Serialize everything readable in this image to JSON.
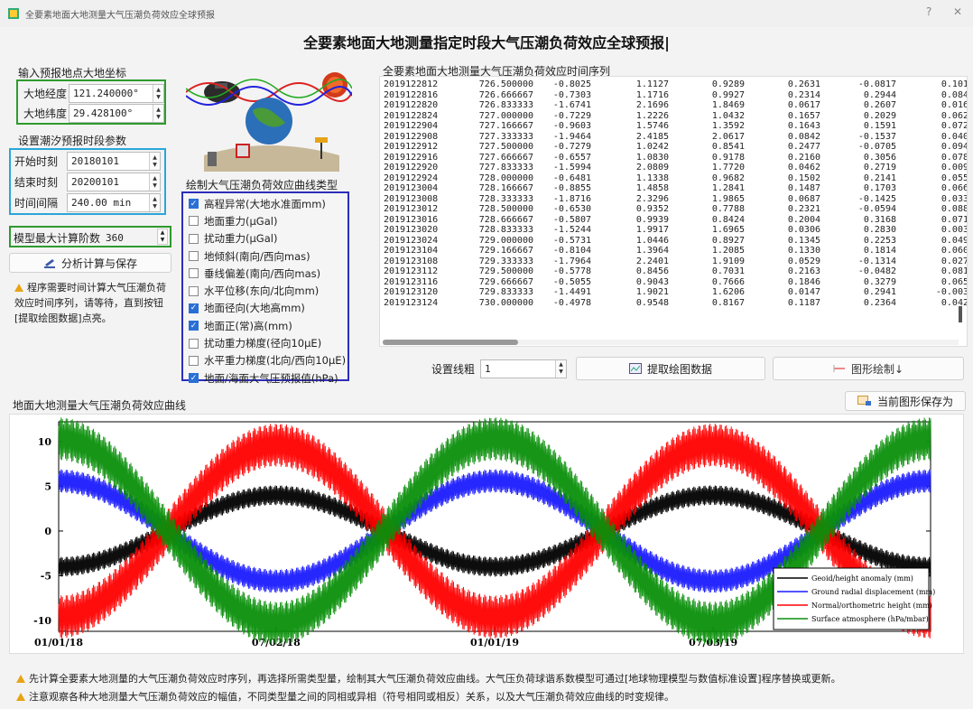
{
  "window": {
    "title": "全要素地面大地测量大气压潮负荷效应全球预报",
    "help_label": "?",
    "close_label": "✕"
  },
  "main_title": "全要素地面大地测量指定时段大气压潮负荷效应全球预报|",
  "location": {
    "label": "输入预报地点大地坐标",
    "longitude_label": "大地经度",
    "longitude_value": "121.240000°",
    "latitude_label": "大地纬度",
    "latitude_value": "29.428100°"
  },
  "tide_params": {
    "label": "设置潮汐预报时段参数",
    "start_label": "开始时刻",
    "start_value": "20180101",
    "end_label": "结束时刻",
    "end_value": "20200101",
    "interval_label": "时间间隔",
    "interval_value": "240.00 min"
  },
  "model": {
    "label": "模型最大计算阶数",
    "value": "360"
  },
  "analyze_button": "分析计算与保存",
  "hint_text": "程序需要时间计算大气压潮负荷效应时间序列，请等待，直到按钮[提取绘图数据]点亮。",
  "curve_types": {
    "label": "绘制大气压潮负荷效应曲线类型",
    "items": [
      {
        "label": "高程异常(大地水准面mm)",
        "checked": true
      },
      {
        "label": "地面重力(μGal)",
        "checked": false
      },
      {
        "label": "扰动重力(μGal)",
        "checked": false
      },
      {
        "label": "地倾斜(南向/西向mas)",
        "checked": false
      },
      {
        "label": "垂线偏差(南向/西向mas)",
        "checked": false
      },
      {
        "label": "水平位移(东向/北向mm)",
        "checked": false
      },
      {
        "label": "地面径向(大地高mm)",
        "checked": true
      },
      {
        "label": "地面正(常)高(mm)",
        "checked": true
      },
      {
        "label": "扰动重力梯度(径向10μE)",
        "checked": false
      },
      {
        "label": "水平重力梯度(北向/西向10μE)",
        "checked": false
      },
      {
        "label": "地面/海面大气压预报值(hPa)",
        "checked": true
      }
    ]
  },
  "series_table": {
    "label": "全要素地面大地测量大气压潮负荷效应时间序列",
    "rows": [
      [
        "2019122812",
        "726.500000",
        "-0.8025",
        "1.1127",
        "0.9289",
        "0.2631",
        "-0.0817",
        "0.101"
      ],
      [
        "2019122816",
        "726.666667",
        "-0.7303",
        "1.1716",
        "0.9927",
        "0.2314",
        "0.2944",
        "0.084"
      ],
      [
        "2019122820",
        "726.833333",
        "-1.6741",
        "2.1696",
        "1.8469",
        "0.0617",
        "0.2607",
        "0.016"
      ],
      [
        "2019122824",
        "727.000000",
        "-0.7229",
        "1.2226",
        "1.0432",
        "0.1657",
        "0.2029",
        "0.062"
      ],
      [
        "2019122904",
        "727.166667",
        "-0.9603",
        "1.5746",
        "1.3592",
        "0.1643",
        "0.1591",
        "0.072"
      ],
      [
        "2019122908",
        "727.333333",
        "-1.9464",
        "2.4185",
        "2.0617",
        "0.0842",
        "-0.1537",
        "0.040"
      ],
      [
        "2019122912",
        "727.500000",
        "-0.7279",
        "1.0242",
        "0.8541",
        "0.2477",
        "-0.0705",
        "0.094"
      ],
      [
        "2019122916",
        "727.666667",
        "-0.6557",
        "1.0830",
        "0.9178",
        "0.2160",
        "0.3056",
        "0.078"
      ],
      [
        "2019122920",
        "727.833333",
        "-1.5994",
        "2.0809",
        "1.7720",
        "0.0462",
        "0.2719",
        "0.009"
      ],
      [
        "2019122924",
        "728.000000",
        "-0.6481",
        "1.1338",
        "0.9682",
        "0.1502",
        "0.2141",
        "0.055"
      ],
      [
        "2019123004",
        "728.166667",
        "-0.8855",
        "1.4858",
        "1.2841",
        "0.1487",
        "0.1703",
        "0.066"
      ],
      [
        "2019123008",
        "728.333333",
        "-1.8716",
        "2.3296",
        "1.9865",
        "0.0687",
        "-0.1425",
        "0.033"
      ],
      [
        "2019123012",
        "728.500000",
        "-0.6530",
        "0.9352",
        "0.7788",
        "0.2321",
        "-0.0594",
        "0.088"
      ],
      [
        "2019123016",
        "728.666667",
        "-0.5807",
        "0.9939",
        "0.8424",
        "0.2004",
        "0.3168",
        "0.071"
      ],
      [
        "2019123020",
        "728.833333",
        "-1.5244",
        "1.9917",
        "1.6965",
        "0.0306",
        "0.2830",
        "0.003"
      ],
      [
        "2019123024",
        "729.000000",
        "-0.5731",
        "1.0446",
        "0.8927",
        "0.1345",
        "0.2253",
        "0.049"
      ],
      [
        "2019123104",
        "729.166667",
        "-0.8104",
        "1.3964",
        "1.2085",
        "0.1330",
        "0.1814",
        "0.060"
      ],
      [
        "2019123108",
        "729.333333",
        "-1.7964",
        "2.2401",
        "1.9109",
        "0.0529",
        "-0.1314",
        "0.027"
      ],
      [
        "2019123112",
        "729.500000",
        "-0.5778",
        "0.8456",
        "0.7031",
        "0.2163",
        "-0.0482",
        "0.081"
      ],
      [
        "2019123116",
        "729.666667",
        "-0.5055",
        "0.9043",
        "0.7666",
        "0.1846",
        "0.3279",
        "0.065"
      ],
      [
        "2019123120",
        "729.833333",
        "-1.4491",
        "1.9021",
        "1.6206",
        "0.0147",
        "0.2941",
        "-0.003"
      ],
      [
        "2019123124",
        "730.000000",
        "-0.4978",
        "0.9548",
        "0.8167",
        "0.1187",
        "0.2364",
        "0.042"
      ]
    ]
  },
  "toolbar": {
    "line_width_label": "设置线粗",
    "line_width_value": "1",
    "extract_button": "提取绘图数据",
    "plot_button": "图形绘制↓"
  },
  "chart_section": {
    "label": "地面大地测量大气压潮负荷效应曲线",
    "save_button": "当前图形保存为"
  },
  "chart_data": {
    "type": "line",
    "x_ticks": [
      "01/01/18",
      "07/02/18",
      "01/01/19",
      "07/03/19"
    ],
    "x_tick_days": [
      0,
      182,
      365,
      548
    ],
    "xlim": [
      0,
      730
    ],
    "y_ticks": [
      "10",
      "5",
      "0",
      "-5",
      "-10"
    ],
    "ylim": [
      -11.2,
      12.2
    ],
    "legend_position": "bottom-right",
    "series": [
      {
        "name": "Geoid/height anomaly (mm)",
        "color": "#000000",
        "amplitude": 4.0,
        "period_days": 365,
        "phase_days": 0,
        "sign": -1,
        "band": 1.1
      },
      {
        "name": "Ground radial displacement (mm)",
        "color": "#1a1aff",
        "amplitude": 5.6,
        "period_days": 365,
        "phase_days": 0,
        "sign": 1,
        "band": 1.3
      },
      {
        "name": "Normal/orthometric height (mm)",
        "color": "#ff0000",
        "amplitude": 9.6,
        "period_days": 365,
        "phase_days": 0,
        "sign": -1,
        "band": 2.4
      },
      {
        "name": "Surface atmosphere (hPa/mbar)",
        "color": "#0a8f0a",
        "amplitude": 10.3,
        "period_days": 365,
        "phase_days": 0,
        "sign": 1,
        "band": 2.4
      }
    ]
  },
  "footer": {
    "line1": "先计算全要素大地测量的大气压潮负荷效应时序列，再选择所需类型量，绘制其大气压潮负荷效应曲线。大气压负荷球谐系数模型可通过[地球物理模型与数值标准设置]程序替换或更新。",
    "line2": "注意观察各种大地测量大气压潮负荷效应的幅值，不同类型量之间的同相或异相（符号相同或相反）关系，以及大气压潮负荷效应曲线的时变规律。"
  }
}
